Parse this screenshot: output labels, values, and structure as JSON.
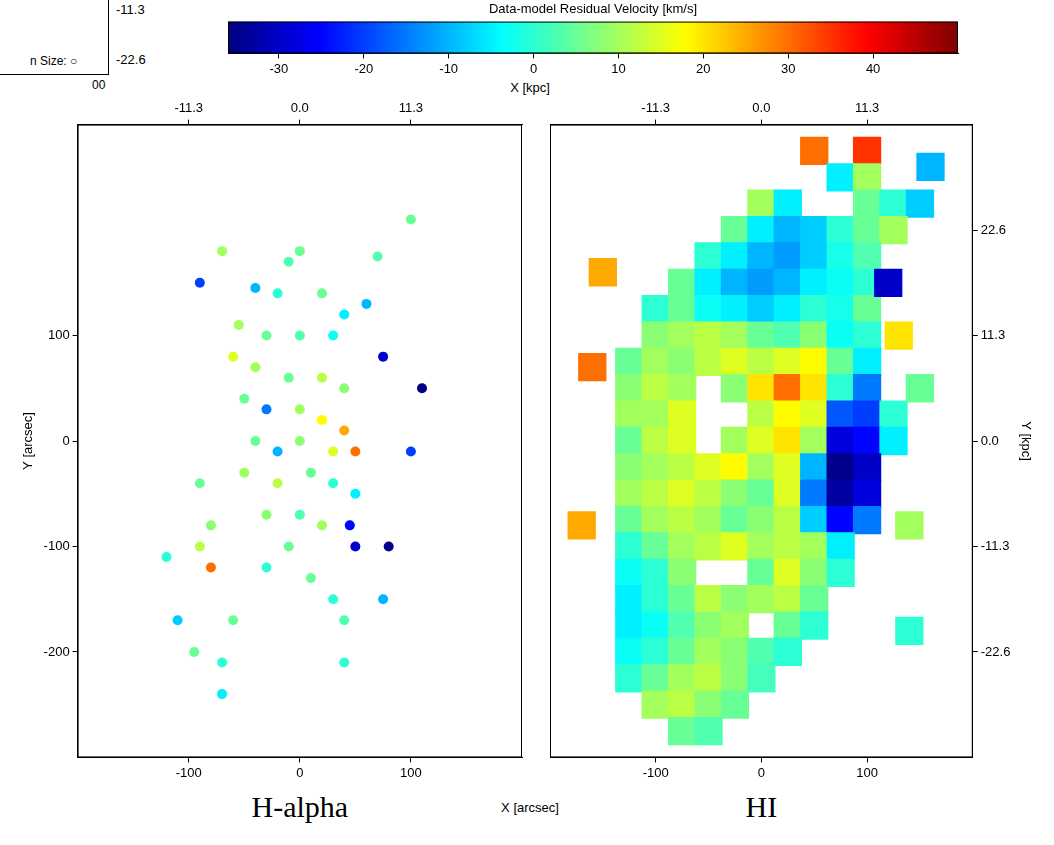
{
  "colorbar": {
    "label": "Data-model Residual Velocity [km/s]",
    "range": [
      -36,
      50
    ],
    "ticks": [
      -30,
      -20,
      -10,
      0,
      10,
      20,
      30,
      40
    ]
  },
  "xlabel": "X [arcsec]",
  "x2label": "X [kpc]",
  "fragment": [
    "-11.3",
    "-22.6",
    "n Size: ○",
    "00"
  ],
  "chart_data": [
    {
      "type": "scatter",
      "title": "H-alpha",
      "marker": "circle",
      "grid": false,
      "xlim": [
        -200,
        200
      ],
      "xticks": [
        -100,
        0,
        100
      ],
      "x2lim": [
        -22.6,
        22.6
      ],
      "x2ticks": [
        -11.3,
        {
          "value": 0,
          "label": "0.0"
        },
        11.3
      ],
      "ylim": [
        -300,
        300
      ],
      "yticks": [
        -200,
        -100,
        0,
        100
      ],
      "ylabel": "Y [arcsec]",
      "points": [
        [
          0,
          180,
          5
        ],
        [
          -10,
          170,
          3
        ],
        [
          -40,
          145,
          -10
        ],
        [
          -20,
          140,
          0
        ],
        [
          20,
          140,
          5
        ],
        [
          -55,
          110,
          10
        ],
        [
          -30,
          100,
          5
        ],
        [
          0,
          100,
          3
        ],
        [
          30,
          100,
          -3
        ],
        [
          40,
          120,
          -5
        ],
        [
          -60,
          80,
          15
        ],
        [
          -40,
          70,
          10
        ],
        [
          -10,
          60,
          5
        ],
        [
          20,
          60,
          12
        ],
        [
          40,
          50,
          8
        ],
        [
          -50,
          40,
          5
        ],
        [
          -30,
          30,
          -15
        ],
        [
          0,
          30,
          10
        ],
        [
          20,
          20,
          18
        ],
        [
          40,
          10,
          25
        ],
        [
          50,
          -10,
          30
        ],
        [
          30,
          -10,
          15
        ],
        [
          0,
          0,
          8
        ],
        [
          -20,
          -10,
          -10
        ],
        [
          -40,
          0,
          5
        ],
        [
          -50,
          -30,
          10
        ],
        [
          -20,
          -40,
          12
        ],
        [
          10,
          -30,
          5
        ],
        [
          30,
          -40,
          0
        ],
        [
          50,
          -50,
          -5
        ],
        [
          -30,
          -70,
          8
        ],
        [
          0,
          -70,
          3
        ],
        [
          20,
          -80,
          10
        ],
        [
          45,
          -80,
          -25
        ],
        [
          50,
          -100,
          -30
        ],
        [
          -10,
          -100,
          5
        ],
        [
          -30,
          -120,
          0
        ],
        [
          10,
          -130,
          5
        ],
        [
          30,
          -150,
          0
        ],
        [
          40,
          -170,
          3
        ],
        [
          -80,
          -80,
          8
        ],
        [
          -90,
          -40,
          5
        ],
        [
          -80,
          -120,
          30
        ],
        [
          -90,
          -100,
          12
        ],
        [
          -95,
          -200,
          5
        ],
        [
          -70,
          -210,
          0
        ],
        [
          -70,
          -240,
          -5
        ],
        [
          80,
          -100,
          -35
        ],
        [
          75,
          -150,
          -10
        ],
        [
          100,
          -10,
          -20
        ],
        [
          110,
          50,
          -40
        ],
        [
          75,
          80,
          -30
        ],
        [
          60,
          130,
          -10
        ],
        [
          70,
          175,
          3
        ],
        [
          -70,
          180,
          10
        ],
        [
          -90,
          150,
          -20
        ],
        [
          100,
          210,
          5
        ],
        [
          -120,
          -110,
          0
        ],
        [
          -110,
          -170,
          -8
        ],
        [
          -60,
          -170,
          5
        ],
        [
          40,
          -210,
          0
        ]
      ]
    },
    {
      "type": "scatter",
      "title": "HI",
      "marker": "square",
      "grid": false,
      "xlim": [
        -200,
        200
      ],
      "xticks": [
        -100,
        0,
        100
      ],
      "x2lim": [
        -22.6,
        22.6
      ],
      "x2ticks": [
        -11.3,
        {
          "value": 0,
          "label": "0.0"
        },
        11.3
      ],
      "ylim": [
        -300,
        300
      ],
      "y2lim": [
        -33.9,
        33.9
      ],
      "y2ticks": [
        -22.6,
        -11.3,
        {
          "value": 0,
          "label": "0.0"
        },
        11.3,
        22.6
      ],
      "y2label": "Y [kpc]",
      "points": [
        [
          50,
          275,
          30
        ],
        [
          100,
          275,
          35
        ],
        [
          75,
          250,
          -5
        ],
        [
          100,
          250,
          10
        ],
        [
          0,
          225,
          10
        ],
        [
          25,
          225,
          -5
        ],
        [
          100,
          225,
          5
        ],
        [
          125,
          225,
          0
        ],
        [
          150,
          225,
          -8
        ],
        [
          -25,
          200,
          5
        ],
        [
          0,
          200,
          -5
        ],
        [
          25,
          200,
          -10
        ],
        [
          50,
          200,
          -8
        ],
        [
          75,
          200,
          0
        ],
        [
          100,
          200,
          5
        ],
        [
          125,
          200,
          10
        ],
        [
          -50,
          175,
          0
        ],
        [
          -25,
          175,
          -5
        ],
        [
          0,
          175,
          -10
        ],
        [
          25,
          175,
          -12
        ],
        [
          50,
          175,
          -8
        ],
        [
          75,
          175,
          -2
        ],
        [
          100,
          175,
          3
        ],
        [
          -75,
          150,
          5
        ],
        [
          -50,
          150,
          -5
        ],
        [
          -25,
          150,
          -10
        ],
        [
          0,
          150,
          -12
        ],
        [
          25,
          150,
          -10
        ],
        [
          50,
          150,
          -5
        ],
        [
          75,
          150,
          -3
        ],
        [
          100,
          150,
          0
        ],
        [
          -100,
          125,
          0
        ],
        [
          -75,
          125,
          5
        ],
        [
          -50,
          125,
          -3
        ],
        [
          -25,
          125,
          -5
        ],
        [
          0,
          125,
          -8
        ],
        [
          25,
          125,
          -5
        ],
        [
          50,
          125,
          0
        ],
        [
          75,
          125,
          -2
        ],
        [
          100,
          125,
          5
        ],
        [
          -100,
          100,
          8
        ],
        [
          -75,
          100,
          10
        ],
        [
          -50,
          100,
          12
        ],
        [
          -25,
          100,
          10
        ],
        [
          0,
          100,
          5
        ],
        [
          25,
          100,
          3
        ],
        [
          50,
          100,
          8
        ],
        [
          75,
          100,
          -3
        ],
        [
          100,
          100,
          0
        ],
        [
          -125,
          75,
          5
        ],
        [
          -100,
          75,
          10
        ],
        [
          -75,
          75,
          8
        ],
        [
          -50,
          75,
          12
        ],
        [
          -25,
          75,
          15
        ],
        [
          0,
          75,
          12
        ],
        [
          25,
          75,
          15
        ],
        [
          50,
          75,
          18
        ],
        [
          75,
          75,
          5
        ],
        [
          100,
          75,
          -5
        ],
        [
          -125,
          50,
          8
        ],
        [
          -100,
          50,
          12
        ],
        [
          -75,
          50,
          10
        ],
        [
          -25,
          50,
          8
        ],
        [
          0,
          50,
          20
        ],
        [
          25,
          50,
          30
        ],
        [
          50,
          50,
          20
        ],
        [
          75,
          50,
          0
        ],
        [
          100,
          50,
          -15
        ],
        [
          -125,
          25,
          10
        ],
        [
          -100,
          25,
          10
        ],
        [
          -75,
          25,
          15
        ],
        [
          0,
          25,
          12
        ],
        [
          25,
          25,
          18
        ],
        [
          50,
          25,
          15
        ],
        [
          75,
          25,
          -18
        ],
        [
          100,
          25,
          -20
        ],
        [
          125,
          25,
          0
        ],
        [
          -125,
          0,
          5
        ],
        [
          -100,
          0,
          12
        ],
        [
          -75,
          0,
          15
        ],
        [
          -25,
          0,
          10
        ],
        [
          0,
          0,
          15
        ],
        [
          25,
          0,
          20
        ],
        [
          50,
          0,
          10
        ],
        [
          75,
          0,
          -28
        ],
        [
          100,
          0,
          -25
        ],
        [
          125,
          0,
          -5
        ],
        [
          -125,
          -25,
          8
        ],
        [
          -100,
          -25,
          10
        ],
        [
          -75,
          -25,
          12
        ],
        [
          -50,
          -25,
          15
        ],
        [
          -25,
          -25,
          18
        ],
        [
          0,
          -25,
          10
        ],
        [
          25,
          -25,
          15
        ],
        [
          50,
          -25,
          -10
        ],
        [
          75,
          -25,
          -35
        ],
        [
          100,
          -25,
          -30
        ],
        [
          -125,
          -50,
          10
        ],
        [
          -100,
          -50,
          12
        ],
        [
          -75,
          -50,
          15
        ],
        [
          -50,
          -50,
          12
        ],
        [
          -25,
          -50,
          8
        ],
        [
          0,
          -50,
          5
        ],
        [
          25,
          -50,
          15
        ],
        [
          50,
          -50,
          -15
        ],
        [
          75,
          -50,
          -33
        ],
        [
          100,
          -50,
          -28
        ],
        [
          -125,
          -75,
          5
        ],
        [
          -100,
          -75,
          10
        ],
        [
          -75,
          -75,
          12
        ],
        [
          -50,
          -75,
          10
        ],
        [
          -25,
          -75,
          5
        ],
        [
          0,
          -75,
          8
        ],
        [
          25,
          -75,
          12
        ],
        [
          50,
          -75,
          -8
        ],
        [
          75,
          -75,
          -25
        ],
        [
          100,
          -75,
          -15
        ],
        [
          -125,
          -100,
          0
        ],
        [
          -100,
          -100,
          5
        ],
        [
          -75,
          -100,
          10
        ],
        [
          -50,
          -100,
          12
        ],
        [
          -25,
          -100,
          15
        ],
        [
          0,
          -100,
          10
        ],
        [
          25,
          -100,
          12
        ],
        [
          50,
          -100,
          10
        ],
        [
          75,
          -100,
          -5
        ],
        [
          -125,
          -125,
          -3
        ],
        [
          -100,
          -125,
          0
        ],
        [
          -75,
          -125,
          8
        ],
        [
          0,
          -125,
          5
        ],
        [
          25,
          -125,
          15
        ],
        [
          50,
          -125,
          8
        ],
        [
          75,
          -125,
          0
        ],
        [
          -125,
          -150,
          -5
        ],
        [
          -100,
          -150,
          0
        ],
        [
          -75,
          -150,
          5
        ],
        [
          -50,
          -150,
          12
        ],
        [
          -25,
          -150,
          8
        ],
        [
          0,
          -150,
          10
        ],
        [
          25,
          -150,
          12
        ],
        [
          50,
          -150,
          5
        ],
        [
          -125,
          -175,
          -5
        ],
        [
          -100,
          -175,
          -3
        ],
        [
          -75,
          -175,
          3
        ],
        [
          -50,
          -175,
          8
        ],
        [
          -25,
          -175,
          10
        ],
        [
          25,
          -175,
          5
        ],
        [
          50,
          -175,
          0
        ],
        [
          -125,
          -200,
          -3
        ],
        [
          -100,
          -200,
          0
        ],
        [
          -75,
          -200,
          5
        ],
        [
          -50,
          -200,
          10
        ],
        [
          -25,
          -200,
          8
        ],
        [
          0,
          -200,
          3
        ],
        [
          25,
          -200,
          0
        ],
        [
          -125,
          -225,
          0
        ],
        [
          -100,
          -225,
          5
        ],
        [
          -75,
          -225,
          10
        ],
        [
          -50,
          -225,
          12
        ],
        [
          -25,
          -225,
          8
        ],
        [
          0,
          -225,
          2
        ],
        [
          -100,
          -250,
          10
        ],
        [
          -75,
          -250,
          12
        ],
        [
          -50,
          -250,
          8
        ],
        [
          -25,
          -250,
          5
        ],
        [
          -75,
          -275,
          5
        ],
        [
          -50,
          -275,
          3
        ],
        [
          -160,
          70,
          30
        ],
        [
          -170,
          -80,
          25
        ],
        [
          140,
          -80,
          10
        ],
        [
          150,
          50,
          5
        ],
        [
          120,
          150,
          -30
        ],
        [
          -150,
          160,
          25
        ],
        [
          130,
          100,
          20
        ],
        [
          140,
          -180,
          0
        ],
        [
          160,
          260,
          -10
        ]
      ]
    }
  ]
}
